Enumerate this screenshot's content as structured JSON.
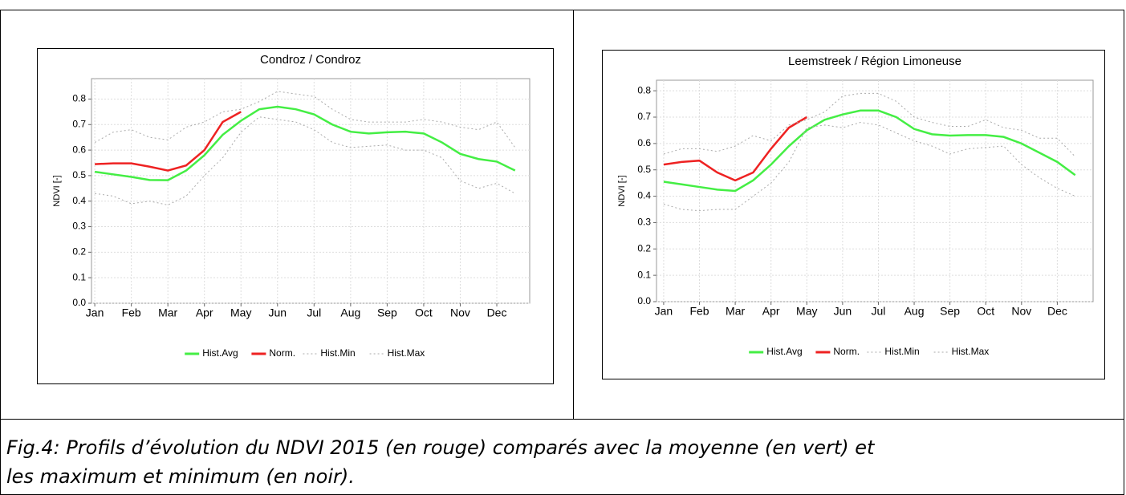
{
  "chart_data": [
    {
      "type": "line",
      "title": "Condroz / Condroz",
      "ylabel": "NDVI [-]",
      "x": [
        1,
        1.5,
        2,
        2.5,
        3,
        3.5,
        4,
        4.5,
        5,
        5.5,
        6,
        6.5,
        7,
        7.5,
        8,
        8.5,
        9,
        9.5,
        10,
        10.5,
        11,
        11.5,
        12,
        12.5
      ],
      "xlim": [
        0.91,
        12.9
      ],
      "xticks": [
        {
          "value": 1,
          "label": "Jan"
        },
        {
          "value": 2,
          "label": "Feb"
        },
        {
          "value": 3,
          "label": "Mar"
        },
        {
          "value": 4,
          "label": "Apr"
        },
        {
          "value": 5,
          "label": "May"
        },
        {
          "value": 6,
          "label": "Jun"
        },
        {
          "value": 7,
          "label": "Jul"
        },
        {
          "value": 8,
          "label": "Aug"
        },
        {
          "value": 9,
          "label": "Sep"
        },
        {
          "value": 10,
          "label": "Oct"
        },
        {
          "value": 11,
          "label": "Nov"
        },
        {
          "value": 12,
          "label": "Dec"
        }
      ],
      "ylim": [
        0,
        0.88
      ],
      "yticks": [
        {
          "value": 0,
          "label": "0.0"
        },
        0.1,
        0.2,
        0.3,
        0.4,
        0.5,
        0.6,
        0.7,
        0.8
      ],
      "grid": true,
      "series": [
        {
          "name": "Hist.Avg",
          "color": "#44ee44",
          "style": "solid",
          "values": [
            0.515,
            0.505,
            0.495,
            0.483,
            0.482,
            0.52,
            0.58,
            0.66,
            0.715,
            0.76,
            0.77,
            0.76,
            0.74,
            0.7,
            0.672,
            0.665,
            0.67,
            0.672,
            0.665,
            0.63,
            0.585,
            0.565,
            0.555,
            0.52
          ]
        },
        {
          "name": "Norm.",
          "color": "#ee2222",
          "style": "solid",
          "values": [
            0.545,
            0.548,
            0.548,
            0.535,
            0.52,
            0.54,
            0.6,
            0.71,
            0.75,
            null,
            null,
            null,
            null,
            null,
            null,
            null,
            null,
            null,
            null,
            null,
            null,
            null,
            null,
            null
          ]
        },
        {
          "name": "Hist.Min",
          "color": "#aaaaaa",
          "style": "dotted",
          "values": [
            0.43,
            0.42,
            0.39,
            0.4,
            0.385,
            0.42,
            0.5,
            0.57,
            0.67,
            0.73,
            0.72,
            0.71,
            0.68,
            0.63,
            0.61,
            0.615,
            0.62,
            0.6,
            0.6,
            0.57,
            0.48,
            0.45,
            0.47,
            0.43
          ]
        },
        {
          "name": "Hist.Max",
          "color": "#aaaaaa",
          "style": "dotted",
          "values": [
            0.63,
            0.67,
            0.68,
            0.65,
            0.64,
            0.69,
            0.71,
            0.75,
            0.76,
            0.79,
            0.83,
            0.82,
            0.81,
            0.76,
            0.72,
            0.71,
            0.71,
            0.71,
            0.72,
            0.71,
            0.69,
            0.68,
            0.71,
            0.61
          ]
        }
      ]
    },
    {
      "type": "line",
      "title": "Leemstreek / Région Limoneuse",
      "ylabel": "NDVI [-]",
      "x": [
        1,
        1.5,
        2,
        2.5,
        3,
        3.5,
        4,
        4.5,
        5,
        5.5,
        6,
        6.5,
        7,
        7.5,
        8,
        8.5,
        9,
        9.5,
        10,
        10.5,
        11,
        11.5,
        12,
        12.5
      ],
      "xlim": [
        0.8,
        13
      ],
      "xticks": [
        {
          "value": 1,
          "label": "Jan"
        },
        {
          "value": 2,
          "label": "Feb"
        },
        {
          "value": 3,
          "label": "Mar"
        },
        {
          "value": 4,
          "label": "Apr"
        },
        {
          "value": 5,
          "label": "May"
        },
        {
          "value": 6,
          "label": "Jun"
        },
        {
          "value": 7,
          "label": "Jul"
        },
        {
          "value": 8,
          "label": "Aug"
        },
        {
          "value": 9,
          "label": "Sep"
        },
        {
          "value": 10,
          "label": "Oct"
        },
        {
          "value": 11,
          "label": "Nov"
        },
        {
          "value": 12,
          "label": "Dec"
        }
      ],
      "ylim": [
        0,
        0.84
      ],
      "yticks": [
        {
          "value": 0,
          "label": "0.0"
        },
        0.1,
        0.2,
        0.3,
        0.4,
        0.5,
        0.6,
        0.7,
        0.8
      ],
      "grid": true,
      "series": [
        {
          "name": "Hist.Avg",
          "color": "#44ee44",
          "style": "solid",
          "values": [
            0.455,
            0.445,
            0.435,
            0.425,
            0.42,
            0.46,
            0.52,
            0.59,
            0.65,
            0.69,
            0.71,
            0.725,
            0.725,
            0.7,
            0.655,
            0.635,
            0.63,
            0.632,
            0.632,
            0.625,
            0.6,
            0.565,
            0.53,
            0.48
          ]
        },
        {
          "name": "Norm.",
          "color": "#ee2222",
          "style": "solid",
          "values": [
            0.52,
            0.53,
            0.535,
            0.49,
            0.46,
            0.49,
            0.58,
            0.66,
            0.7,
            null,
            null,
            null,
            null,
            null,
            null,
            null,
            null,
            null,
            null,
            null,
            null,
            null,
            null,
            null
          ]
        },
        {
          "name": "Hist.Min",
          "color": "#aaaaaa",
          "style": "dotted",
          "values": [
            0.37,
            0.35,
            0.345,
            0.35,
            0.35,
            0.4,
            0.45,
            0.53,
            0.66,
            0.67,
            0.66,
            0.68,
            0.67,
            0.64,
            0.61,
            0.59,
            0.56,
            0.58,
            0.585,
            0.59,
            0.52,
            0.47,
            0.43,
            0.4
          ]
        },
        {
          "name": "Hist.Max",
          "color": "#aaaaaa",
          "style": "dotted",
          "values": [
            0.56,
            0.58,
            0.58,
            0.57,
            0.59,
            0.63,
            0.61,
            0.67,
            0.69,
            0.72,
            0.78,
            0.79,
            0.79,
            0.76,
            0.7,
            0.68,
            0.665,
            0.665,
            0.69,
            0.66,
            0.65,
            0.62,
            0.62,
            0.55
          ]
        }
      ]
    }
  ],
  "caption": "Fig.4: Profils d’évolution du NDVI 2015 (en rouge) comparés avec la moyenne (en vert) et les maximum et minimum (en noir)."
}
